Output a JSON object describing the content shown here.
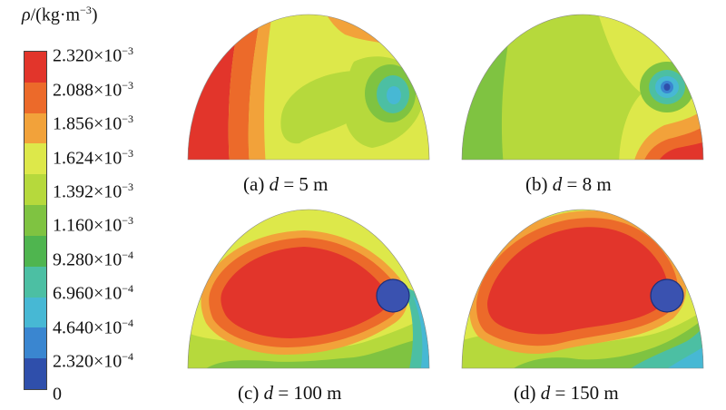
{
  "legend": {
    "title_symbol": "ρ",
    "title_unit": "/(kg·m",
    "title_exp": "−3",
    "title_close": ")",
    "ticks": [
      {
        "mantissa": "2.320×10",
        "exp": "−3"
      },
      {
        "mantissa": "2.088×10",
        "exp": "−3"
      },
      {
        "mantissa": "1.856×10",
        "exp": "−3"
      },
      {
        "mantissa": "1.624×10",
        "exp": "−3"
      },
      {
        "mantissa": "1.392×10",
        "exp": "−3"
      },
      {
        "mantissa": "1.160×10",
        "exp": "−3"
      },
      {
        "mantissa": "9.280×10",
        "exp": "−4"
      },
      {
        "mantissa": "6.960×10",
        "exp": "−4"
      },
      {
        "mantissa": "4.640×10",
        "exp": "−4"
      },
      {
        "mantissa": "2.320×10",
        "exp": "−4"
      },
      {
        "mantissa": "0",
        "exp": ""
      }
    ],
    "colors": [
      "#e2352b",
      "#ec6a2a",
      "#f2a23a",
      "#dde84a",
      "#b6d93c",
      "#7fc341",
      "#4fb54f",
      "#4cbfa3",
      "#47b8d4",
      "#3a86d0",
      "#2f4fab"
    ]
  },
  "panels": [
    {
      "prefix": "(a) ",
      "var": "d",
      "value": " = 5 m"
    },
    {
      "prefix": "(b) ",
      "var": "d",
      "value": " = 8 m"
    },
    {
      "prefix": "(c) ",
      "var": "d",
      "value": " = 100 m"
    },
    {
      "prefix": "(d) ",
      "var": "d",
      "value": " = 150 m"
    }
  ]
}
